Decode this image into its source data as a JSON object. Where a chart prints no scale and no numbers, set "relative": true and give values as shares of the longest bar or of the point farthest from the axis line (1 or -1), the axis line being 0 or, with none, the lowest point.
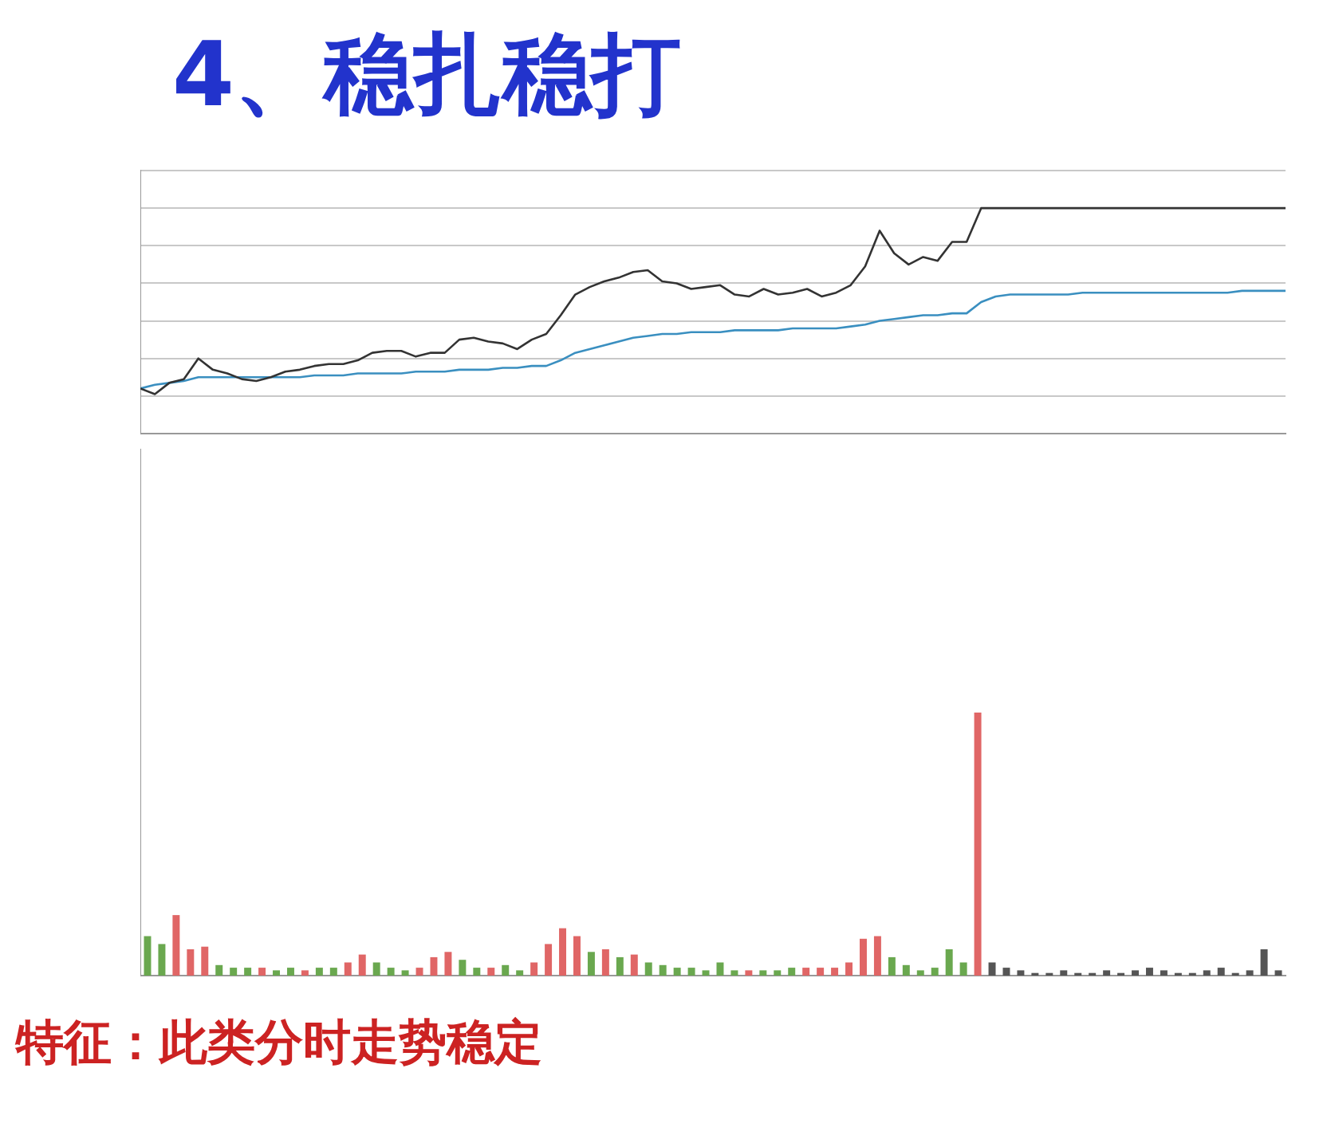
{
  "chart_data": [
    {
      "type": "line",
      "title": "4、稳扎稳打",
      "relative": true,
      "grid": "y",
      "legend": false,
      "marker": "none",
      "line_style": "solid",
      "categories": [
        null,
        null,
        null,
        null,
        null,
        null,
        null,
        null,
        null,
        null,
        null,
        null,
        null,
        null,
        null,
        null,
        null,
        null,
        null,
        null,
        null,
        null,
        null,
        null,
        null,
        null,
        null,
        null,
        null,
        null,
        null,
        null,
        null,
        null,
        null,
        null,
        null,
        null,
        null,
        null,
        null,
        null,
        null,
        null,
        null,
        null,
        null,
        null,
        null,
        null,
        null,
        null,
        null,
        null,
        null,
        null,
        null,
        null,
        null,
        null,
        null,
        null,
        null,
        null,
        null,
        null,
        null,
        null,
        null,
        null,
        null,
        null,
        null,
        null,
        null,
        null,
        null,
        null,
        null,
        null
      ],
      "series": [
        {
          "color": "#333333",
          "values": [
            0.04,
            0.01,
            0.07,
            0.09,
            0.2,
            0.14,
            0.12,
            0.09,
            0.08,
            0.1,
            0.13,
            0.14,
            0.16,
            0.17,
            0.17,
            0.19,
            0.23,
            0.24,
            0.24,
            0.21,
            0.23,
            0.23,
            0.3,
            0.31,
            0.29,
            0.28,
            0.25,
            0.3,
            0.33,
            0.43,
            0.54,
            0.58,
            0.61,
            0.63,
            0.66,
            0.67,
            0.61,
            0.6,
            0.57,
            0.58,
            0.59,
            0.54,
            0.53,
            0.57,
            0.54,
            0.55,
            0.57,
            0.53,
            0.55,
            0.59,
            0.69,
            0.88,
            0.76,
            0.7,
            0.74,
            0.72,
            0.82,
            0.82,
            1,
            1,
            1,
            1,
            1,
            1,
            1,
            1,
            1,
            1,
            1,
            1,
            1,
            1,
            1,
            1,
            1,
            1,
            1,
            1,
            1,
            1
          ]
        },
        {
          "color": "#3a8fc0",
          "values": [
            0.04,
            0.06,
            0.07,
            0.08,
            0.1,
            0.1,
            0.1,
            0.1,
            0.1,
            0.1,
            0.1,
            0.1,
            0.11,
            0.11,
            0.11,
            0.12,
            0.12,
            0.12,
            0.12,
            0.13,
            0.13,
            0.13,
            0.14,
            0.14,
            0.14,
            0.15,
            0.15,
            0.16,
            0.16,
            0.19,
            0.23,
            0.25,
            0.27,
            0.29,
            0.31,
            0.32,
            0.33,
            0.33,
            0.34,
            0.34,
            0.34,
            0.35,
            0.35,
            0.35,
            0.35,
            0.36,
            0.36,
            0.36,
            0.36,
            0.37,
            0.38,
            0.4,
            0.41,
            0.42,
            0.43,
            0.43,
            0.44,
            0.44,
            0.5,
            0.53,
            0.54,
            0.54,
            0.54,
            0.54,
            0.54,
            0.55,
            0.55,
            0.55,
            0.55,
            0.55,
            0.55,
            0.55,
            0.55,
            0.55,
            0.55,
            0.55,
            0.56,
            0.56,
            0.56,
            0.56
          ]
        }
      ]
    },
    {
      "type": "bar",
      "relative": true,
      "legend": false,
      "annotations": [
        "特征：此类分时走势稳定"
      ],
      "categories": [
        null,
        null,
        null,
        null,
        null,
        null,
        null,
        null,
        null,
        null,
        null,
        null,
        null,
        null,
        null,
        null,
        null,
        null,
        null,
        null,
        null,
        null,
        null,
        null,
        null,
        null,
        null,
        null,
        null,
        null,
        null,
        null,
        null,
        null,
        null,
        null,
        null,
        null,
        null,
        null,
        null,
        null,
        null,
        null,
        null,
        null,
        null,
        null,
        null,
        null,
        null,
        null,
        null,
        null,
        null,
        null,
        null,
        null,
        null,
        null,
        null,
        null,
        null,
        null,
        null,
        null,
        null,
        null,
        null,
        null,
        null,
        null,
        null,
        null,
        null,
        null,
        null,
        null,
        null,
        null
      ],
      "values": [
        0.15,
        0.12,
        0.23,
        0.1,
        0.11,
        0.04,
        0.03,
        0.03,
        0.03,
        0.02,
        0.03,
        0.02,
        0.03,
        0.03,
        0.05,
        0.08,
        0.05,
        0.03,
        0.02,
        0.03,
        0.07,
        0.09,
        0.06,
        0.03,
        0.03,
        0.04,
        0.02,
        0.05,
        0.12,
        0.18,
        0.15,
        0.09,
        0.1,
        0.07,
        0.08,
        0.05,
        0.04,
        0.03,
        0.03,
        0.02,
        0.05,
        0.02,
        0.02,
        0.02,
        0.02,
        0.03,
        0.03,
        0.03,
        0.03,
        0.05,
        0.14,
        0.15,
        0.07,
        0.04,
        0.02,
        0.03,
        0.1,
        0.05,
        1,
        0.05,
        0.03,
        0.02,
        0.01,
        0.01,
        0.02,
        0.01,
        0.01,
        0.02,
        0.01,
        0.02,
        0.03,
        0.02,
        0.01,
        0.01,
        0.02,
        0.03,
        0.01,
        0.02,
        0.1,
        0.02
      ],
      "colors": [
        "#6aa84f",
        "#6aa84f",
        "#e06666",
        "#e06666",
        "#e06666",
        "#6aa84f",
        "#6aa84f",
        "#6aa84f",
        "#e06666",
        "#6aa84f",
        "#6aa84f",
        "#e06666",
        "#6aa84f",
        "#6aa84f",
        "#e06666",
        "#e06666",
        "#6aa84f",
        "#6aa84f",
        "#6aa84f",
        "#e06666",
        "#e06666",
        "#e06666",
        "#6aa84f",
        "#6aa84f",
        "#e06666",
        "#6aa84f",
        "#6aa84f",
        "#e06666",
        "#e06666",
        "#e06666",
        "#e06666",
        "#6aa84f",
        "#e06666",
        "#6aa84f",
        "#e06666",
        "#6aa84f",
        "#6aa84f",
        "#6aa84f",
        "#6aa84f",
        "#6aa84f",
        "#6aa84f",
        "#6aa84f",
        "#e06666",
        "#6aa84f",
        "#6aa84f",
        "#6aa84f",
        "#e06666",
        "#e06666",
        "#e06666",
        "#e06666",
        "#e06666",
        "#e06666",
        "#6aa84f",
        "#6aa84f",
        "#6aa84f",
        "#6aa84f",
        "#6aa84f",
        "#6aa84f",
        "#e06666",
        "#555555",
        "#555555",
        "#555555",
        "#555555",
        "#555555",
        "#555555",
        "#555555",
        "#555555",
        "#555555",
        "#555555",
        "#555555",
        "#555555",
        "#555555",
        "#555555",
        "#555555",
        "#555555",
        "#555555",
        "#555555",
        "#555555",
        "#555555",
        "#555555"
      ]
    }
  ]
}
